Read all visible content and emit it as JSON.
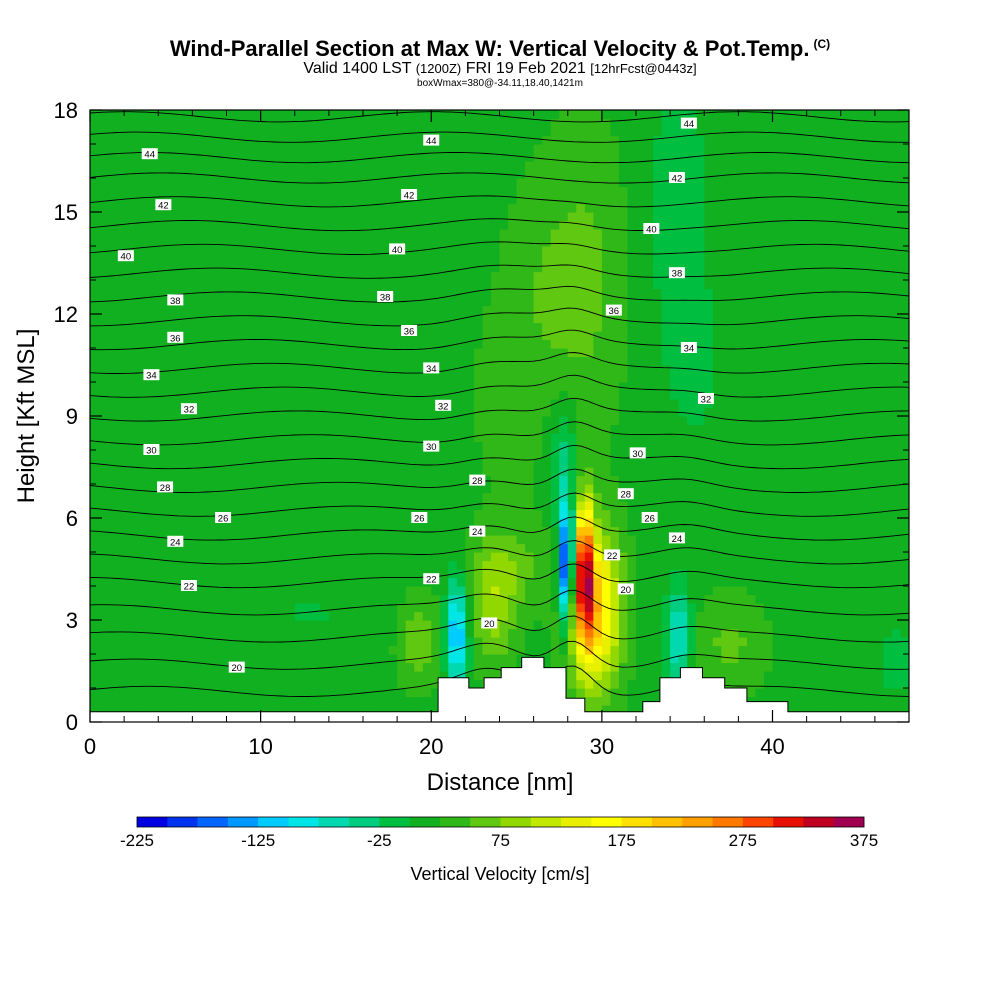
{
  "chart_data": {
    "type": "heatmap",
    "title": "Wind-Parallel Section at Max W: Vertical Velocity & Pot.Temp.",
    "copyright_mark": "(C)",
    "subtitle_main": "Valid 1400 LST",
    "subtitle_z": "(1200Z)",
    "subtitle_date": "FRI 19 Feb 2021",
    "subtitle_fcst": "[12hrFcst@0443z]",
    "subtitle2": "boxWmax=380@-34.11,18.40,1421m",
    "xlabel": "Distance [nm]",
    "ylabel": "Height [Kft MSL]",
    "xlim": [
      0,
      48
    ],
    "ylim": [
      0,
      18
    ],
    "xticks": [
      0,
      10,
      20,
      30,
      40
    ],
    "yticks": [
      0,
      3,
      6,
      9,
      12,
      15,
      18
    ],
    "colorbar": {
      "label": "Vertical Velocity [cm/s]",
      "min": -225,
      "step": 25,
      "count": 24,
      "tick_labels": [
        -225,
        -125,
        -25,
        75,
        175,
        275,
        375
      ],
      "colors": [
        "#0000e0",
        "#0033f0",
        "#0066ff",
        "#0099ff",
        "#00ccff",
        "#00e5e5",
        "#00d9b0",
        "#00cc80",
        "#00bf40",
        "#10b020",
        "#30b818",
        "#60c810",
        "#90d800",
        "#c0e800",
        "#e8f000",
        "#ffff00",
        "#ffe000",
        "#ffc000",
        "#ffa000",
        "#ff7800",
        "#ff4400",
        "#e81000",
        "#c00020",
        "#a00050"
      ]
    },
    "background_w": 15,
    "features": [
      {
        "name": "upper-plume",
        "cx": 29.2,
        "cy": 13,
        "sx": 1.5,
        "sy": 3.2,
        "amp": 40
      },
      {
        "name": "upper-left-plume",
        "cx": 26.5,
        "cy": 13,
        "sx": 1.4,
        "sy": 2.5,
        "amp": 25
      },
      {
        "name": "midlevel-left",
        "cx": 24.5,
        "cy": 9.5,
        "sx": 2.2,
        "sy": 3,
        "amp": 15
      },
      {
        "name": "downdraft-right-upper",
        "cx": 34.5,
        "cy": 15,
        "sx": 1.2,
        "sy": 3,
        "amp": -35
      },
      {
        "name": "downdraft-right-mid",
        "cx": 35.5,
        "cy": 10.5,
        "sx": 1,
        "sy": 1.5,
        "amp": -25
      },
      {
        "name": "downdraft-col-mid",
        "cx": 27.7,
        "cy": 7.8,
        "sx": 0.6,
        "sy": 1.2,
        "amp": -55
      },
      {
        "name": "left-weak-down",
        "cx": 9,
        "cy": 10,
        "sx": 5,
        "sy": 3,
        "amp": -12
      },
      {
        "name": "main-updraft",
        "cx": 29.5,
        "cy": 3.3,
        "sx": 1.1,
        "sy": 1.6,
        "amp": 200
      },
      {
        "name": "main-updraft-core",
        "cx": 29,
        "cy": 4.6,
        "sx": 0.35,
        "sy": 1.4,
        "amp": 230
      },
      {
        "name": "main-downdraft",
        "cx": 27.9,
        "cy": 4.6,
        "sx": 0.32,
        "sy": 1.3,
        "amp": -245
      },
      {
        "name": "downdraft-left-ridge",
        "cx": 21.5,
        "cy": 2.6,
        "sx": 0.45,
        "sy": 1.1,
        "amp": -155
      },
      {
        "name": "updraft-left-ridge",
        "cx": 23.6,
        "cy": 3.3,
        "sx": 1,
        "sy": 1.2,
        "amp": 70
      },
      {
        "name": "updraft-far-left",
        "cx": 19.3,
        "cy": 2.4,
        "sx": 0.9,
        "sy": 0.9,
        "amp": 55
      },
      {
        "name": "updraft-upper-left-ridge",
        "cx": 24.7,
        "cy": 4.6,
        "sx": 1.5,
        "sy": 0.8,
        "amp": 40
      },
      {
        "name": "downdraft-right-ridge",
        "cx": 34.5,
        "cy": 2.5,
        "sx": 0.5,
        "sy": 1.1,
        "amp": -95
      },
      {
        "name": "updraft-right-ridge",
        "cx": 37.5,
        "cy": 2.3,
        "sx": 1.5,
        "sy": 1,
        "amp": 40
      },
      {
        "name": "right-edge-down",
        "cx": 47.3,
        "cy": 1.8,
        "sx": 1,
        "sy": 0.9,
        "amp": -25
      },
      {
        "name": "left-low-down",
        "cx": 13,
        "cy": 3.2,
        "sx": 3,
        "sy": 0.8,
        "amp": -15
      }
    ],
    "isentrope_values": [
      20,
      22,
      24,
      26,
      28,
      30,
      32,
      34,
      36,
      38,
      40,
      42,
      44
    ],
    "isentropes": [
      {
        "h": 0.9
      },
      {
        "h": 1.7
      },
      {
        "h": 2.5
      },
      {
        "h": 3.3
      },
      {
        "h": 4.1
      },
      {
        "h": 4.8
      },
      {
        "h": 5.5
      },
      {
        "h": 6.2
      },
      {
        "h": 6.9
      },
      {
        "h": 7.6
      },
      {
        "h": 8.3
      },
      {
        "h": 9.0
      },
      {
        "h": 9.7
      },
      {
        "h": 10.4
      },
      {
        "h": 11.1
      },
      {
        "h": 11.8
      },
      {
        "h": 12.5
      },
      {
        "h": 13.2
      },
      {
        "h": 13.9
      },
      {
        "h": 14.6
      },
      {
        "h": 15.3
      },
      {
        "h": 16.0
      },
      {
        "h": 16.6
      },
      {
        "h": 17.2
      },
      {
        "h": 17.8
      }
    ],
    "contour_labels": [
      {
        "text": "44",
        "x": 3.5,
        "y": 16.7
      },
      {
        "text": "42",
        "x": 4.3,
        "y": 15.2
      },
      {
        "text": "40",
        "x": 2.1,
        "y": 13.7
      },
      {
        "text": "38",
        "x": 5,
        "y": 12.4
      },
      {
        "text": "36",
        "x": 5,
        "y": 11.3
      },
      {
        "text": "34",
        "x": 3.6,
        "y": 10.2
      },
      {
        "text": "32",
        "x": 5.8,
        "y": 9.2
      },
      {
        "text": "30",
        "x": 3.6,
        "y": 8.0
      },
      {
        "text": "28",
        "x": 4.4,
        "y": 6.9
      },
      {
        "text": "26",
        "x": 7.8,
        "y": 6.0
      },
      {
        "text": "24",
        "x": 5,
        "y": 5.3
      },
      {
        "text": "22",
        "x": 5.8,
        "y": 4.0
      },
      {
        "text": "20",
        "x": 8.6,
        "y": 1.6
      },
      {
        "text": "44",
        "x": 20,
        "y": 17.1
      },
      {
        "text": "42",
        "x": 18.7,
        "y": 15.5
      },
      {
        "text": "40",
        "x": 18,
        "y": 13.9
      },
      {
        "text": "38",
        "x": 17.3,
        "y": 12.5
      },
      {
        "text": "36",
        "x": 18.7,
        "y": 11.5
      },
      {
        "text": "34",
        "x": 20,
        "y": 10.4
      },
      {
        "text": "32",
        "x": 20.7,
        "y": 9.3
      },
      {
        "text": "30",
        "x": 20,
        "y": 8.1
      },
      {
        "text": "28",
        "x": 22.7,
        "y": 7.1
      },
      {
        "text": "26",
        "x": 19.3,
        "y": 6.0
      },
      {
        "text": "24",
        "x": 22.7,
        "y": 5.6
      },
      {
        "text": "22",
        "x": 20,
        "y": 4.2
      },
      {
        "text": "20",
        "x": 23.4,
        "y": 2.9
      },
      {
        "text": "44",
        "x": 35.1,
        "y": 17.6
      },
      {
        "text": "42",
        "x": 34.4,
        "y": 16.0
      },
      {
        "text": "40",
        "x": 32.9,
        "y": 14.5
      },
      {
        "text": "38",
        "x": 34.4,
        "y": 13.2
      },
      {
        "text": "36",
        "x": 30.7,
        "y": 12.1
      },
      {
        "text": "34",
        "x": 35.1,
        "y": 11.0
      },
      {
        "text": "32",
        "x": 36.1,
        "y": 9.5
      },
      {
        "text": "30",
        "x": 32.1,
        "y": 7.9
      },
      {
        "text": "28",
        "x": 31.4,
        "y": 6.7
      },
      {
        "text": "26",
        "x": 32.8,
        "y": 6.0
      },
      {
        "text": "24",
        "x": 34.4,
        "y": 5.4
      },
      {
        "text": "22",
        "x": 30.6,
        "y": 4.9
      },
      {
        "text": "20",
        "x": 31.4,
        "y": 3.9
      }
    ],
    "terrain": [
      [
        0,
        0.3
      ],
      [
        19.6,
        0.3
      ],
      [
        19.6,
        0.3
      ],
      [
        20.4,
        0.3
      ],
      [
        20.4,
        1.3
      ],
      [
        22.2,
        1.3
      ],
      [
        22.2,
        1.0
      ],
      [
        23.1,
        1.0
      ],
      [
        23.1,
        1.3
      ],
      [
        24.1,
        1.3
      ],
      [
        24.1,
        1.6
      ],
      [
        25.3,
        1.6
      ],
      [
        25.3,
        1.9
      ],
      [
        26.6,
        1.9
      ],
      [
        26.6,
        1.6
      ],
      [
        27.9,
        1.6
      ],
      [
        27.9,
        0.7
      ],
      [
        29.0,
        0.7
      ],
      [
        29.0,
        0.3
      ],
      [
        32.4,
        0.3
      ],
      [
        32.4,
        0.6
      ],
      [
        33.4,
        0.6
      ],
      [
        33.4,
        1.3
      ],
      [
        34.6,
        1.3
      ],
      [
        34.6,
        1.6
      ],
      [
        35.9,
        1.6
      ],
      [
        35.9,
        1.3
      ],
      [
        37.2,
        1.3
      ],
      [
        37.2,
        1.0
      ],
      [
        38.5,
        1.0
      ],
      [
        38.5,
        0.6
      ],
      [
        40.9,
        0.6
      ],
      [
        40.9,
        0.3
      ],
      [
        48,
        0.3
      ]
    ]
  }
}
